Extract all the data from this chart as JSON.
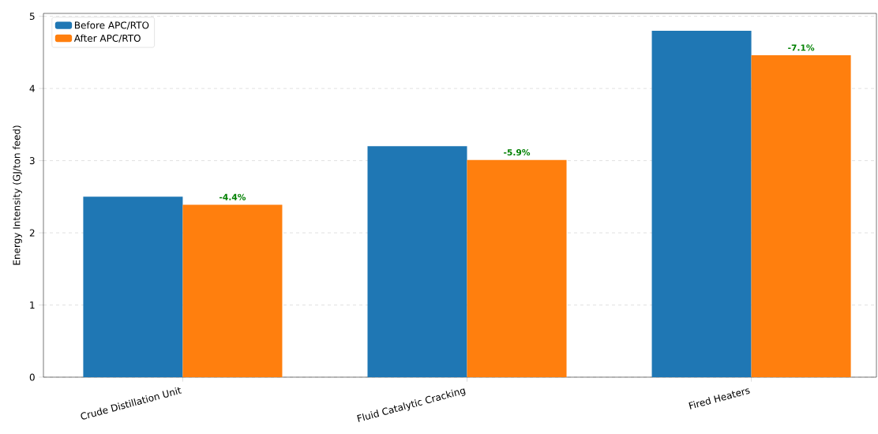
{
  "chart_data": {
    "type": "bar",
    "ylabel": "Energy Intensity (GJ/ton feed)",
    "categories": [
      "Crude Distillation Unit",
      "Fluid Catalytic Cracking",
      "Fired Heaters"
    ],
    "series": [
      {
        "name": "Before APC/RTO",
        "color": "#1f77b4",
        "values": [
          2.5,
          3.2,
          4.8
        ]
      },
      {
        "name": "After APC/RTO",
        "color": "#ff7f0e",
        "values": [
          2.39,
          3.01,
          4.46
        ]
      }
    ],
    "annotations": [
      "-4.4%",
      "-5.9%",
      "-7.1%"
    ],
    "ylim": [
      0,
      5.04
    ],
    "yticks": [
      0,
      1,
      2,
      3,
      4,
      5
    ],
    "grid": "y",
    "legend": "top left"
  }
}
